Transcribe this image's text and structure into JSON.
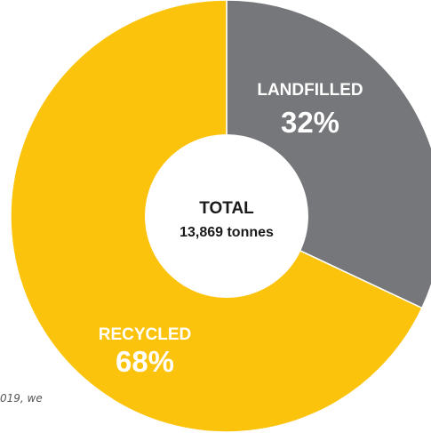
{
  "chart_data": {
    "type": "pie",
    "donut": true,
    "center_title": "TOTAL",
    "center_subtitle": "13,869 tonnes",
    "slices": [
      {
        "label": "LANDFILLED",
        "value": 32,
        "value_label": "32%",
        "color": "#76777a"
      },
      {
        "label": "RECYCLED",
        "value": 68,
        "value_label": "68%",
        "color": "#fcc30d"
      }
    ]
  },
  "cut_text": "019, we"
}
